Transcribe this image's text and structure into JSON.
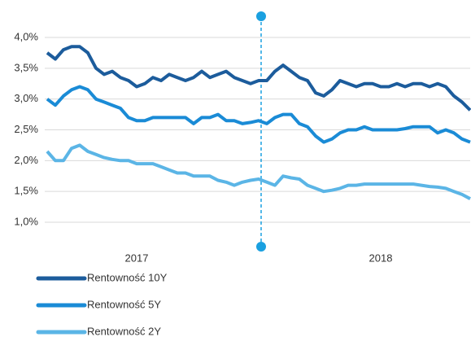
{
  "chart_data": {
    "type": "line",
    "categories": [
      null,
      null,
      null,
      null,
      null,
      null,
      null,
      null,
      null,
      null,
      null,
      "2017",
      null,
      null,
      null,
      null,
      null,
      null,
      null,
      null,
      null,
      null,
      null,
      null,
      null,
      null,
      null,
      null,
      null,
      null,
      null,
      null,
      null,
      null,
      null,
      null,
      null,
      null,
      null,
      null,
      null,
      "2018",
      null,
      null,
      null,
      null,
      null,
      null,
      null,
      null,
      null,
      null,
      null
    ],
    "series": [
      {
        "name": "Rentowność 10Y",
        "color": "#1c5c9c",
        "values": [
          3.75,
          3.65,
          3.8,
          3.85,
          3.85,
          3.75,
          3.5,
          3.4,
          3.45,
          3.35,
          3.3,
          3.2,
          3.25,
          3.35,
          3.3,
          3.4,
          3.35,
          3.3,
          3.35,
          3.45,
          3.35,
          3.4,
          3.45,
          3.35,
          3.3,
          3.25,
          3.3,
          3.3,
          3.45,
          3.55,
          3.45,
          3.35,
          3.3,
          3.1,
          3.05,
          3.15,
          3.3,
          3.25,
          3.2,
          3.25,
          3.25,
          3.2,
          3.2,
          3.25,
          3.2,
          3.25,
          3.25,
          3.2,
          3.25,
          3.2,
          3.05,
          2.95,
          2.82
        ]
      },
      {
        "name": "Rentowność 5Y",
        "color": "#1a8bd6",
        "values": [
          3.0,
          2.9,
          3.05,
          3.15,
          3.2,
          3.15,
          3.0,
          2.95,
          2.9,
          2.85,
          2.7,
          2.65,
          2.65,
          2.7,
          2.7,
          2.7,
          2.7,
          2.7,
          2.6,
          2.7,
          2.7,
          2.75,
          2.65,
          2.65,
          2.6,
          2.62,
          2.65,
          2.6,
          2.7,
          2.75,
          2.75,
          2.6,
          2.55,
          2.4,
          2.3,
          2.35,
          2.45,
          2.5,
          2.5,
          2.55,
          2.5,
          2.5,
          2.5,
          2.5,
          2.52,
          2.55,
          2.55,
          2.55,
          2.45,
          2.5,
          2.45,
          2.35,
          2.3
        ]
      },
      {
        "name": "Rentowność 2Y",
        "color": "#5bb5e6",
        "values": [
          2.15,
          2.0,
          2.0,
          2.2,
          2.25,
          2.15,
          2.1,
          2.05,
          2.02,
          2.0,
          2.0,
          1.95,
          1.95,
          1.95,
          1.9,
          1.85,
          1.8,
          1.8,
          1.75,
          1.75,
          1.75,
          1.68,
          1.65,
          1.6,
          1.65,
          1.68,
          1.7,
          1.65,
          1.6,
          1.75,
          1.72,
          1.7,
          1.6,
          1.55,
          1.5,
          1.52,
          1.55,
          1.6,
          1.6,
          1.62,
          1.62,
          1.62,
          1.62,
          1.62,
          1.62,
          1.62,
          1.6,
          1.58,
          1.57,
          1.55,
          1.5,
          1.45,
          1.38
        ]
      }
    ],
    "ylim": [
      1.0,
      4.0
    ],
    "yticks": [
      {
        "value": 1.0,
        "label": "1,0%"
      },
      {
        "value": 1.5,
        "label": "1,5%"
      },
      {
        "value": 2.0,
        "label": "2,0%"
      },
      {
        "value": 2.5,
        "label": "2,5%"
      },
      {
        "value": 3.0,
        "label": "3,0%"
      },
      {
        "value": 3.5,
        "label": "3,5%"
      },
      {
        "value": 4.0,
        "label": "4,0%"
      }
    ],
    "grid": true
  }
}
